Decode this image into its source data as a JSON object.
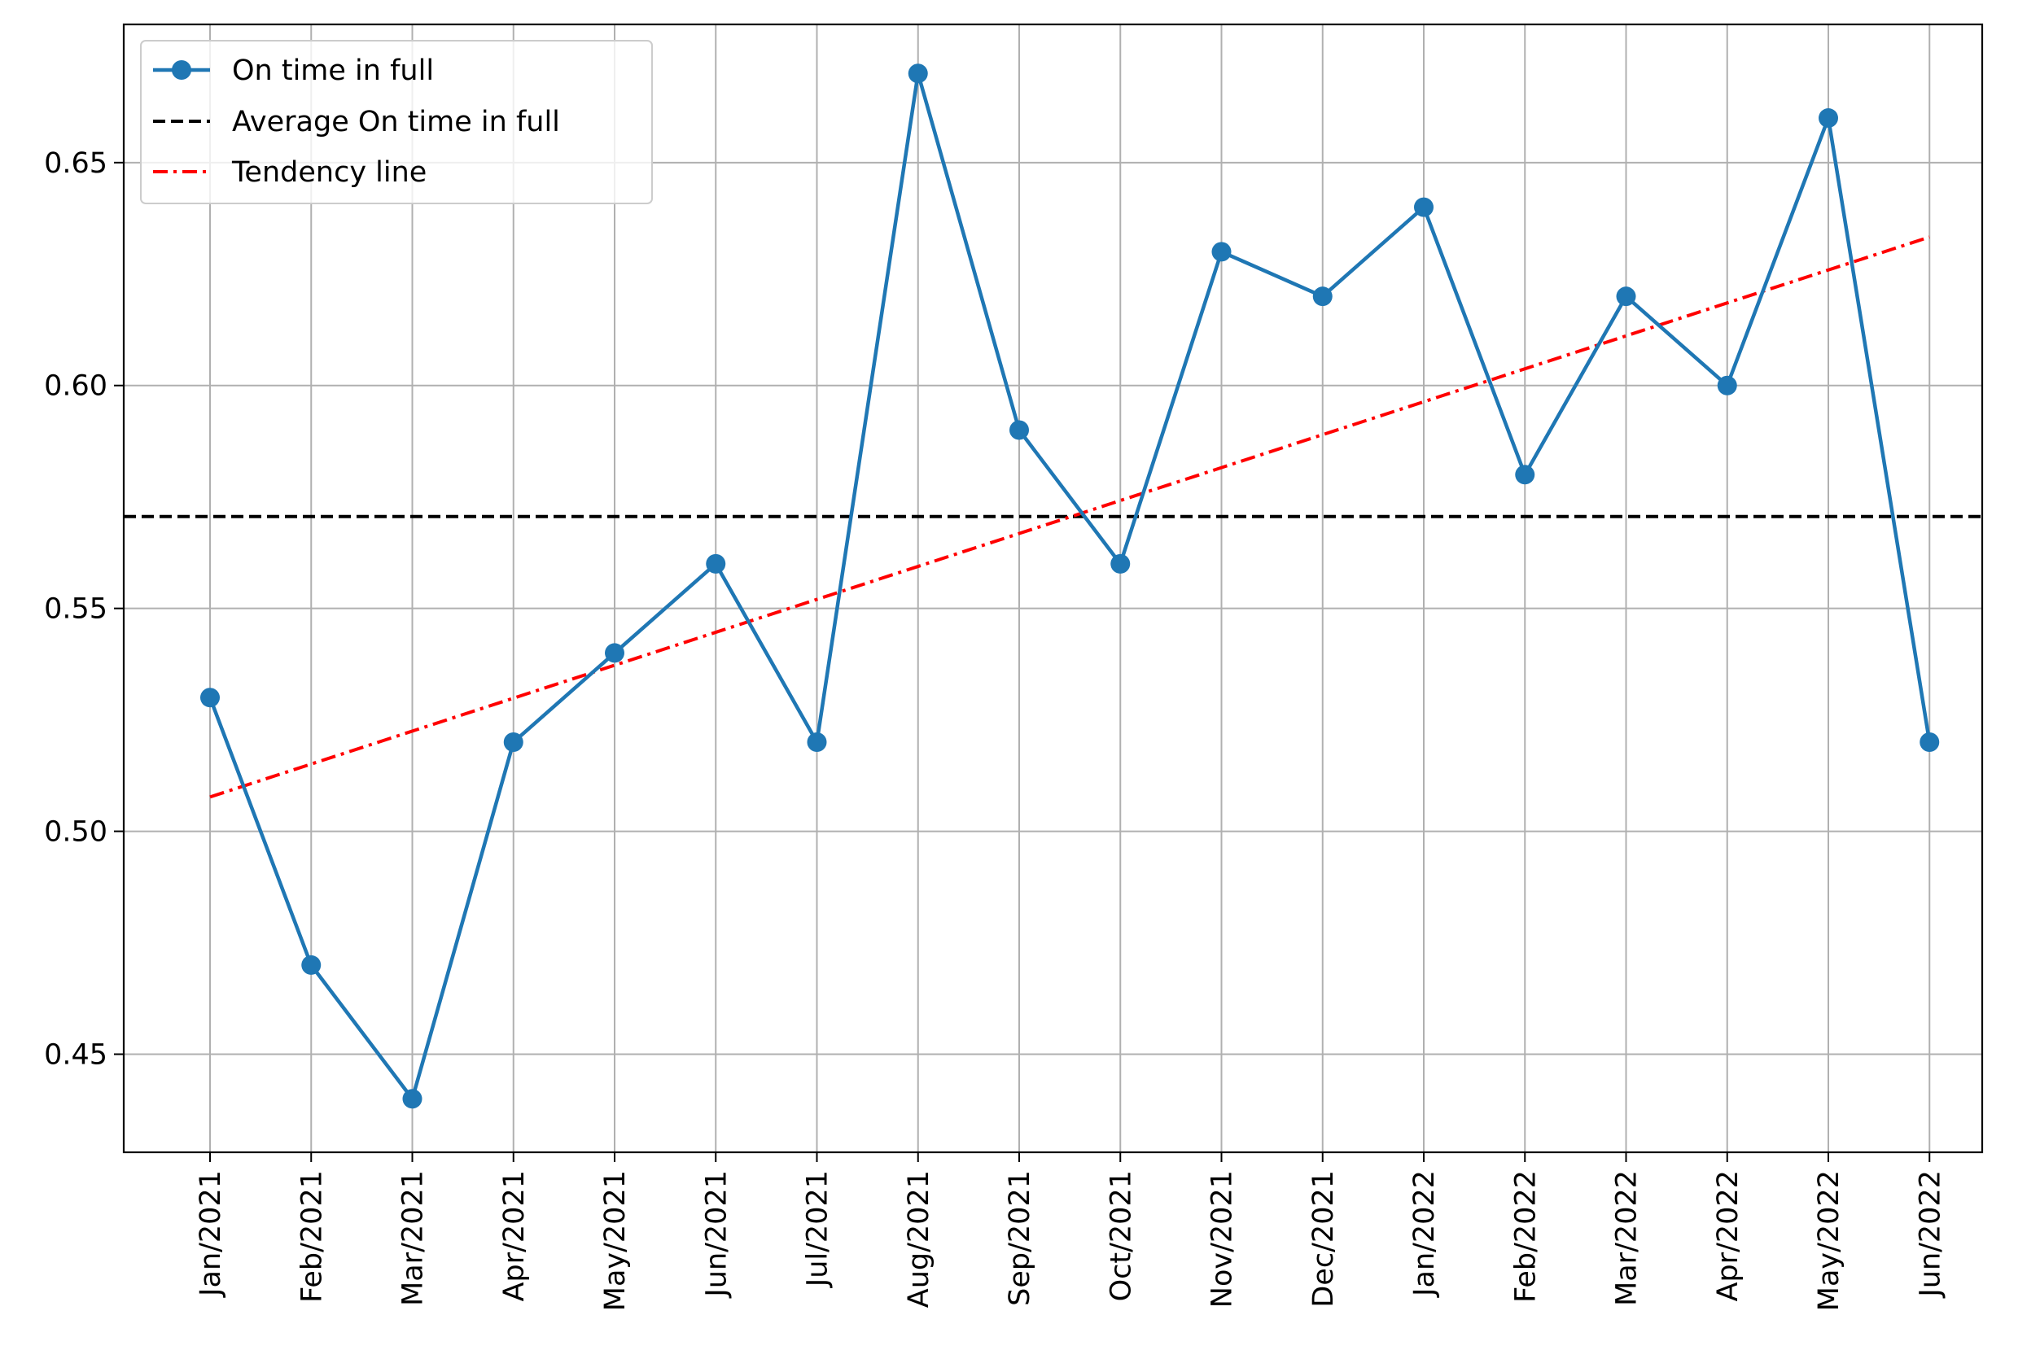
{
  "chart_data": {
    "type": "line",
    "title": "",
    "xlabel": "",
    "ylabel": "",
    "categories": [
      "Jan/2021",
      "Feb/2021",
      "Mar/2021",
      "Apr/2021",
      "May/2021",
      "Jun/2021",
      "Jul/2021",
      "Aug/2021",
      "Sep/2021",
      "Oct/2021",
      "Nov/2021",
      "Dec/2021",
      "Jan/2022",
      "Feb/2022",
      "Mar/2022",
      "Apr/2022",
      "May/2022",
      "Jun/2022"
    ],
    "series": [
      {
        "name": "On time in full",
        "style": "solid-with-markers",
        "color": "#1f77b4",
        "values": [
          0.53,
          0.47,
          0.44,
          0.52,
          0.54,
          0.56,
          0.52,
          0.67,
          0.59,
          0.56,
          0.63,
          0.62,
          0.64,
          0.58,
          0.62,
          0.6,
          0.66,
          0.52
        ]
      },
      {
        "name": "Average On time in full",
        "style": "dashed",
        "color": "#000000",
        "value": 0.5706
      },
      {
        "name": "Tendency line",
        "style": "dash-dot",
        "color": "#ff0000",
        "start": 0.5077,
        "end": 0.6333
      }
    ],
    "ylim": [
      0.428,
      0.681
    ],
    "yticks": [
      "0.45",
      "0.50",
      "0.55",
      "0.60",
      "0.65"
    ],
    "grid": true,
    "legend_position": "top-left"
  }
}
